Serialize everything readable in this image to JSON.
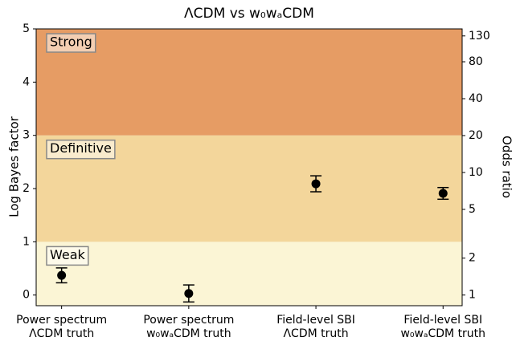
{
  "chart_data": {
    "type": "errorbar",
    "title": "ΛCDM vs w₀wₐCDM",
    "ylabel": "Log Bayes factor",
    "y2label": "Odds ratio",
    "categories": [
      "Power spectrum\nΛCDM truth",
      "Power spectrum\nw₀wₐCDM truth",
      "Field-level SBI\nΛCDM truth",
      "Field-level SBI\nw₀wₐCDM truth"
    ],
    "values": [
      0.37,
      0.03,
      2.09,
      1.91
    ],
    "errors": [
      0.14,
      0.16,
      0.15,
      0.11
    ],
    "color": "#000000",
    "xlim": [
      -0.2,
      3.15
    ],
    "ylim": [
      -0.2,
      5
    ],
    "yticks": [
      0,
      1,
      2,
      3,
      4,
      5
    ],
    "y2lim": [
      0.8187,
      148.41
    ],
    "y2log": true,
    "y2ticks": [
      1,
      2,
      5,
      10,
      20,
      40,
      80,
      130
    ],
    "bands": [
      {
        "label": "Weak",
        "from": -0.2,
        "to": 1,
        "color": "#fbf5d5"
      },
      {
        "label": "Definitive",
        "from": 1,
        "to": 3,
        "color": "#f3d69b"
      },
      {
        "label": "Strong",
        "from": 3,
        "to": 5,
        "color": "#e69c64"
      }
    ]
  }
}
